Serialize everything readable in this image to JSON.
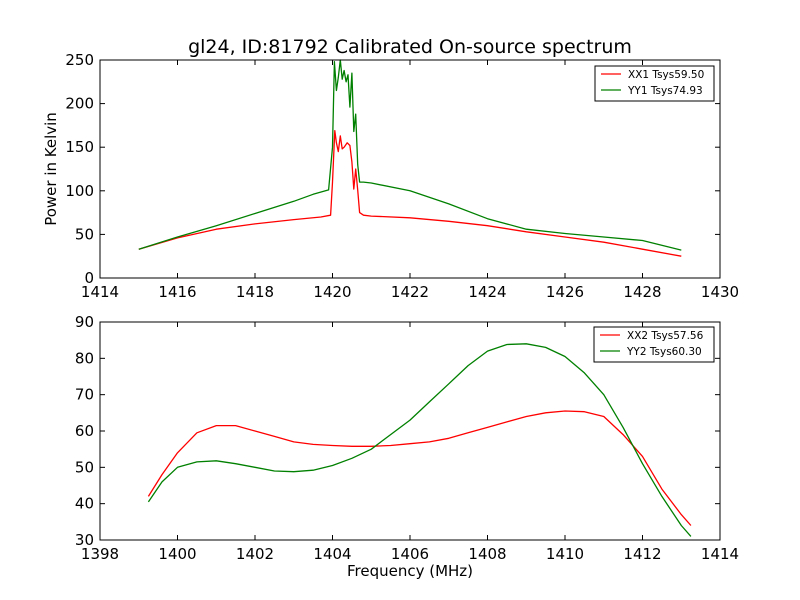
{
  "chart_data": [
    {
      "type": "line",
      "title": "gl24, ID:81792 Calibrated On-source spectrum",
      "xlabel": "",
      "ylabel": "Power in Kelvin",
      "xlim": [
        1414,
        1430
      ],
      "ylim": [
        0,
        250
      ],
      "xticks": [
        1414,
        1416,
        1418,
        1420,
        1422,
        1424,
        1426,
        1428,
        1430
      ],
      "yticks": [
        0,
        50,
        100,
        150,
        200,
        250
      ],
      "grid": false,
      "legend": "top-right",
      "series": [
        {
          "name": "XX1 Tsys59.50",
          "color": "#ff0000",
          "x": [
            1415.0,
            1416.0,
            1417.0,
            1418.0,
            1419.0,
            1419.7,
            1419.95,
            1420.0,
            1420.06,
            1420.1,
            1420.15,
            1420.2,
            1420.25,
            1420.3,
            1420.38,
            1420.45,
            1420.5,
            1420.55,
            1420.6,
            1420.65,
            1420.7,
            1420.8,
            1421.0,
            1422.0,
            1423.0,
            1424.0,
            1425.0,
            1426.0,
            1427.0,
            1428.0,
            1429.0
          ],
          "y": [
            33,
            46,
            56,
            62,
            67,
            70,
            72,
            110,
            169,
            155,
            145,
            163,
            148,
            150,
            155,
            152,
            133,
            102,
            125,
            101,
            75,
            72,
            71,
            69,
            65,
            60,
            53,
            47,
            41,
            33,
            25
          ]
        },
        {
          "name": "YY1 Tsys74.93",
          "color": "#008000",
          "x": [
            1415.0,
            1416.0,
            1417.0,
            1418.0,
            1419.0,
            1419.5,
            1419.9,
            1420.0,
            1420.05,
            1420.1,
            1420.15,
            1420.2,
            1420.25,
            1420.3,
            1420.35,
            1420.4,
            1420.45,
            1420.5,
            1420.55,
            1420.6,
            1420.65,
            1420.7,
            1420.8,
            1421.0,
            1422.0,
            1423.0,
            1424.0,
            1425.0,
            1426.0,
            1427.0,
            1428.0,
            1429.0
          ],
          "y": [
            33,
            47,
            60,
            74,
            88,
            96,
            101,
            150,
            248,
            215,
            230,
            250,
            228,
            238,
            225,
            233,
            196,
            235,
            168,
            188,
            130,
            110,
            110,
            109,
            100,
            85,
            68,
            56,
            51,
            47,
            43,
            32
          ]
        }
      ]
    },
    {
      "type": "line",
      "title": "",
      "xlabel": "Frequency (MHz)",
      "ylabel": "",
      "xlim": [
        1398,
        1414
      ],
      "ylim": [
        30,
        90
      ],
      "xticks": [
        1398,
        1400,
        1402,
        1404,
        1406,
        1408,
        1410,
        1412,
        1414
      ],
      "yticks": [
        30,
        40,
        50,
        60,
        70,
        80,
        90
      ],
      "grid": false,
      "legend": "top-right",
      "series": [
        {
          "name": "XX2 Tsys57.56",
          "color": "#ff0000",
          "x": [
            1399.25,
            1399.6,
            1400.0,
            1400.5,
            1401.0,
            1401.5,
            1402.0,
            1402.5,
            1403.0,
            1403.5,
            1404.0,
            1404.5,
            1405.0,
            1405.5,
            1406.0,
            1406.5,
            1407.0,
            1407.5,
            1408.0,
            1408.5,
            1409.0,
            1409.5,
            1410.0,
            1410.5,
            1411.0,
            1411.5,
            1412.0,
            1412.5,
            1413.0,
            1413.25
          ],
          "y": [
            42,
            48,
            54,
            59.5,
            61.5,
            61.5,
            60,
            58.5,
            57,
            56.3,
            56,
            55.8,
            55.8,
            56,
            56.5,
            57,
            58,
            59.5,
            61,
            62.5,
            64,
            65,
            65.5,
            65.3,
            64,
            59,
            53,
            44,
            37,
            34
          ]
        },
        {
          "name": "YY2 Tsys60.30",
          "color": "#008000",
          "x": [
            1399.25,
            1399.6,
            1400.0,
            1400.5,
            1401.0,
            1401.5,
            1402.0,
            1402.5,
            1403.0,
            1403.5,
            1404.0,
            1404.5,
            1405.0,
            1405.5,
            1406.0,
            1406.5,
            1407.0,
            1407.5,
            1408.0,
            1408.5,
            1409.0,
            1409.5,
            1410.0,
            1410.5,
            1411.0,
            1411.5,
            1412.0,
            1412.5,
            1413.0,
            1413.25
          ],
          "y": [
            40.5,
            46,
            50,
            51.5,
            51.8,
            51,
            50,
            49,
            48.8,
            49.2,
            50.5,
            52.5,
            55,
            59,
            63,
            68,
            73,
            78,
            82,
            83.8,
            84,
            83,
            80.5,
            76,
            70,
            61,
            51,
            42,
            34,
            31
          ]
        }
      ]
    }
  ]
}
